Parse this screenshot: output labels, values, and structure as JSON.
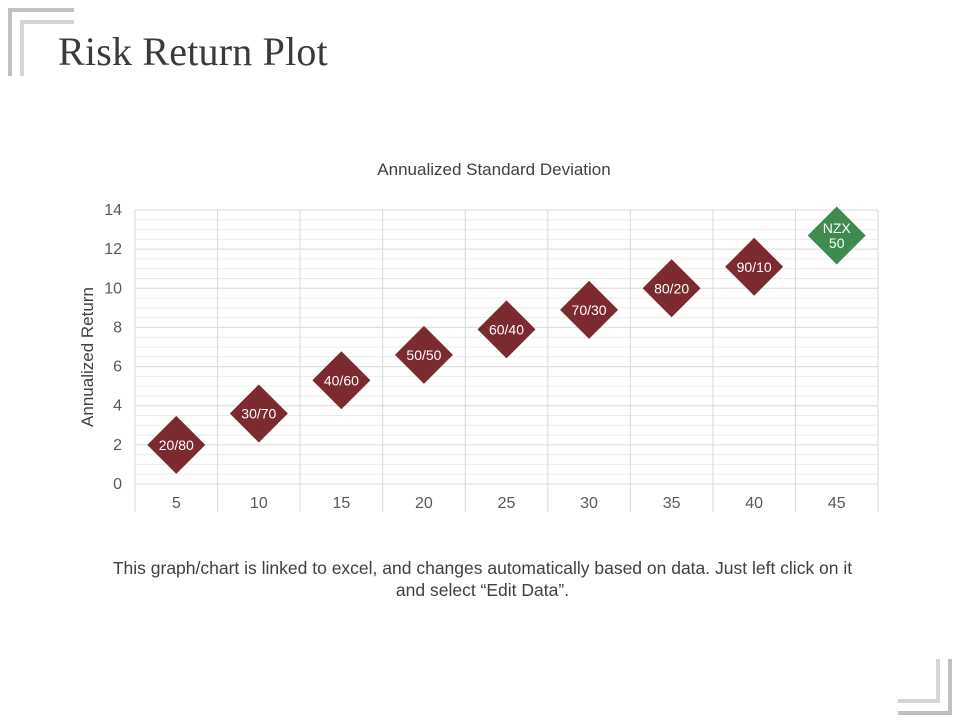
{
  "slide": {
    "title": "Risk Return Plot",
    "footnote": "This graph/chart is linked to excel, and changes automatically based on data. Just left click on it and select “Edit Data”."
  },
  "colors": {
    "portfolio_marker": "#7b2a2f",
    "benchmark_marker": "#3d8b4e",
    "corner_bracket": "#bfbfbf",
    "title_text": "#3a3a3a"
  },
  "chart_data": {
    "type": "scatter",
    "title": "Annualized Standard Deviation",
    "xlabel": "",
    "ylabel": "Annualized Return",
    "xlim": [
      2.5,
      47.5
    ],
    "ylim": [
      0,
      14
    ],
    "x_ticks": [
      5,
      10,
      15,
      20,
      25,
      30,
      35,
      40,
      45
    ],
    "y_ticks": [
      0,
      2,
      4,
      6,
      8,
      10,
      12,
      14
    ],
    "grid": true,
    "marker": "diamond",
    "points": [
      {
        "label": "20/80",
        "x": 5,
        "y": 2,
        "group": "portfolio"
      },
      {
        "label": "30/70",
        "x": 10,
        "y": 3.6,
        "group": "portfolio"
      },
      {
        "label": "40/60",
        "x": 15,
        "y": 5.3,
        "group": "portfolio"
      },
      {
        "label": "50/50",
        "x": 20,
        "y": 6.6,
        "group": "portfolio"
      },
      {
        "label": "60/40",
        "x": 25,
        "y": 7.9,
        "group": "portfolio"
      },
      {
        "label": "70/30",
        "x": 30,
        "y": 8.9,
        "group": "portfolio"
      },
      {
        "label": "80/20",
        "x": 35,
        "y": 10,
        "group": "portfolio"
      },
      {
        "label": "90/10",
        "x": 40,
        "y": 11.1,
        "group": "portfolio"
      },
      {
        "label": "NZX 50",
        "x": 45,
        "y": 12.7,
        "group": "benchmark"
      }
    ]
  }
}
